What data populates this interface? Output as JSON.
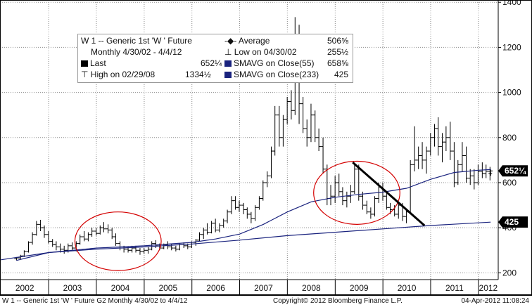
{
  "legend": {
    "title": "W 1 -- Generic 1st 'W ' Future",
    "average_label": "Average",
    "average_value": "506⅝",
    "range": "Monthly 4/30/02 - 4/4/12",
    "low_label": "Low on 04/30/02",
    "low_value": "255½",
    "last_label": "Last",
    "last_value": "652¼",
    "sma55_label": "SMAVG on Close(55)",
    "sma55_value": "658⅝",
    "high_label": "High on 02/29/08",
    "high_value": "1334½",
    "sma233_label": "SMAVG on Close(233)",
    "sma233_value": "425"
  },
  "badges": {
    "last": "652¼",
    "sma233": "425"
  },
  "footer": {
    "left": "W 1 -- Generic 1st 'W ' Future   G2  Monthly  4/30/02 to 4/4/12",
    "middle": "Copyright© 2012 Bloomberg Finance L.P.",
    "right": "04-Apr-2012 11:08:24"
  },
  "colors": {
    "price": "#000000",
    "sma55": "#1a237e",
    "sma233": "#1a237e",
    "circle": "#d40000",
    "trendline": "#000000"
  },
  "chart_data": {
    "type": "bar",
    "ylim": [
      170,
      1410
    ],
    "yticks": [
      200,
      400,
      600,
      800,
      1000,
      1200,
      1400
    ],
    "xlim": [
      "2001-12-25",
      "2012-06-01"
    ],
    "x_labels": [
      "2002",
      "2003",
      "2004",
      "2005",
      "2006",
      "2007",
      "2008",
      "2009",
      "2010",
      "2011",
      "2012"
    ],
    "grid": true,
    "price_axis": "right",
    "series": [
      {
        "name": "W 1 -- Generic 1st 'W ' Future",
        "style": "ohlc_monthly",
        "ohlc": [
          [
            "2002-04-30",
            262,
            270,
            255,
            266
          ],
          [
            "2002-05-31",
            266,
            280,
            258,
            275
          ],
          [
            "2002-06-28",
            275,
            300,
            270,
            295
          ],
          [
            "2002-07-31",
            295,
            340,
            290,
            335
          ],
          [
            "2002-08-30",
            335,
            380,
            325,
            370
          ],
          [
            "2002-09-30",
            370,
            430,
            365,
            415
          ],
          [
            "2002-10-31",
            415,
            435,
            385,
            400
          ],
          [
            "2002-11-29",
            400,
            410,
            355,
            370
          ],
          [
            "2002-12-31",
            370,
            385,
            330,
            340
          ],
          [
            "2003-01-31",
            340,
            350,
            315,
            325
          ],
          [
            "2003-02-28",
            325,
            340,
            300,
            315
          ],
          [
            "2003-03-31",
            315,
            330,
            290,
            305
          ],
          [
            "2003-04-30",
            305,
            320,
            285,
            300
          ],
          [
            "2003-05-30",
            300,
            330,
            290,
            320
          ],
          [
            "2003-06-30",
            320,
            335,
            300,
            310
          ],
          [
            "2003-07-31",
            310,
            340,
            295,
            330
          ],
          [
            "2003-08-29",
            330,
            370,
            325,
            360
          ],
          [
            "2003-09-30",
            360,
            385,
            340,
            350
          ],
          [
            "2003-10-31",
            350,
            380,
            340,
            370
          ],
          [
            "2003-11-28",
            370,
            400,
            360,
            385
          ],
          [
            "2003-12-31",
            385,
            400,
            365,
            375
          ],
          [
            "2004-01-30",
            375,
            410,
            370,
            400
          ],
          [
            "2004-02-27",
            400,
            425,
            380,
            395
          ],
          [
            "2004-03-31",
            395,
            415,
            375,
            390
          ],
          [
            "2004-04-30",
            390,
            400,
            350,
            360
          ],
          [
            "2004-05-28",
            360,
            375,
            320,
            330
          ],
          [
            "2004-06-30",
            330,
            340,
            300,
            310
          ],
          [
            "2004-07-30",
            310,
            320,
            290,
            305
          ],
          [
            "2004-08-31",
            305,
            315,
            290,
            300
          ],
          [
            "2004-09-30",
            300,
            320,
            290,
            310
          ],
          [
            "2004-10-29",
            310,
            320,
            290,
            300
          ],
          [
            "2004-11-30",
            300,
            310,
            280,
            295
          ],
          [
            "2004-12-31",
            295,
            310,
            285,
            300
          ],
          [
            "2005-01-31",
            300,
            315,
            285,
            305
          ],
          [
            "2005-02-28",
            305,
            340,
            300,
            330
          ],
          [
            "2005-03-31",
            330,
            345,
            310,
            320
          ],
          [
            "2005-04-29",
            320,
            330,
            300,
            310
          ],
          [
            "2005-05-31",
            310,
            330,
            305,
            325
          ],
          [
            "2005-06-30",
            325,
            340,
            305,
            315
          ],
          [
            "2005-07-29",
            315,
            330,
            300,
            310
          ],
          [
            "2005-08-31",
            310,
            320,
            295,
            305
          ],
          [
            "2005-09-30",
            305,
            330,
            300,
            325
          ],
          [
            "2005-10-31",
            325,
            335,
            310,
            320
          ],
          [
            "2005-11-30",
            320,
            330,
            305,
            315
          ],
          [
            "2005-12-30",
            315,
            340,
            310,
            335
          ],
          [
            "2006-01-31",
            335,
            350,
            320,
            345
          ],
          [
            "2006-02-28",
            345,
            380,
            340,
            370
          ],
          [
            "2006-03-31",
            370,
            400,
            350,
            390
          ],
          [
            "2006-04-28",
            390,
            420,
            370,
            380
          ],
          [
            "2006-05-31",
            380,
            430,
            375,
            420
          ],
          [
            "2006-06-30",
            420,
            440,
            380,
            390
          ],
          [
            "2006-07-31",
            390,
            420,
            380,
            410
          ],
          [
            "2006-08-31",
            410,
            440,
            400,
            430
          ],
          [
            "2006-09-29",
            430,
            480,
            420,
            470
          ],
          [
            "2006-10-31",
            470,
            540,
            460,
            520
          ],
          [
            "2006-11-30",
            520,
            540,
            480,
            490
          ],
          [
            "2006-12-29",
            490,
            520,
            470,
            500
          ],
          [
            "2007-01-31",
            500,
            510,
            460,
            480
          ],
          [
            "2007-02-28",
            480,
            490,
            440,
            460
          ],
          [
            "2007-03-30",
            460,
            470,
            420,
            440
          ],
          [
            "2007-04-30",
            440,
            500,
            430,
            490
          ],
          [
            "2007-05-31",
            490,
            540,
            480,
            530
          ],
          [
            "2007-06-29",
            530,
            610,
            520,
            600
          ],
          [
            "2007-07-31",
            600,
            650,
            580,
            630
          ],
          [
            "2007-08-31",
            630,
            760,
            620,
            740
          ],
          [
            "2007-09-28",
            740,
            940,
            720,
            900
          ],
          [
            "2007-10-31",
            900,
            940,
            760,
            800
          ],
          [
            "2007-11-30",
            800,
            900,
            760,
            880
          ],
          [
            "2007-12-31",
            880,
            980,
            860,
            960
          ],
          [
            "2008-01-31",
            960,
            1010,
            880,
            920
          ],
          [
            "2008-02-29",
            920,
            1334,
            900,
            1100
          ],
          [
            "2008-03-31",
            1100,
            1300,
            860,
            950
          ],
          [
            "2008-04-30",
            950,
            980,
            820,
            840
          ],
          [
            "2008-05-30",
            840,
            880,
            760,
            800
          ],
          [
            "2008-06-30",
            800,
            950,
            780,
            900
          ],
          [
            "2008-07-31",
            900,
            920,
            780,
            800
          ],
          [
            "2008-08-29",
            800,
            840,
            740,
            760
          ],
          [
            "2008-09-30",
            760,
            800,
            640,
            660
          ],
          [
            "2008-10-31",
            660,
            680,
            500,
            530
          ],
          [
            "2008-11-28",
            530,
            590,
            500,
            540
          ],
          [
            "2008-12-31",
            540,
            630,
            510,
            600
          ],
          [
            "2009-01-30",
            600,
            640,
            540,
            560
          ],
          [
            "2009-02-27",
            560,
            580,
            500,
            520
          ],
          [
            "2009-03-31",
            520,
            560,
            490,
            540
          ],
          [
            "2009-04-30",
            540,
            590,
            510,
            560
          ],
          [
            "2009-05-29",
            560,
            680,
            550,
            660
          ],
          [
            "2009-06-30",
            660,
            680,
            520,
            540
          ],
          [
            "2009-07-31",
            540,
            560,
            480,
            500
          ],
          [
            "2009-08-31",
            500,
            520,
            460,
            470
          ],
          [
            "2009-09-30",
            470,
            490,
            440,
            460
          ],
          [
            "2009-10-30",
            460,
            540,
            450,
            530
          ],
          [
            "2009-11-30",
            530,
            600,
            510,
            580
          ],
          [
            "2009-12-31",
            580,
            600,
            520,
            540
          ],
          [
            "2010-01-29",
            540,
            560,
            480,
            490
          ],
          [
            "2010-02-26",
            490,
            510,
            460,
            480
          ],
          [
            "2010-03-31",
            480,
            500,
            450,
            460
          ],
          [
            "2010-04-30",
            460,
            510,
            440,
            500
          ],
          [
            "2010-05-31",
            500,
            510,
            430,
            450
          ],
          [
            "2010-06-30",
            450,
            480,
            420,
            470
          ],
          [
            "2010-07-30",
            470,
            700,
            460,
            680
          ],
          [
            "2010-08-31",
            680,
            850,
            650,
            700
          ],
          [
            "2010-09-30",
            700,
            760,
            660,
            720
          ],
          [
            "2010-10-29",
            720,
            780,
            660,
            700
          ],
          [
            "2010-11-30",
            700,
            760,
            640,
            740
          ],
          [
            "2010-12-31",
            740,
            820,
            720,
            800
          ],
          [
            "2011-01-31",
            800,
            860,
            760,
            840
          ],
          [
            "2011-02-28",
            840,
            890,
            720,
            760
          ],
          [
            "2011-03-31",
            760,
            820,
            690,
            780
          ],
          [
            "2011-04-29",
            780,
            850,
            740,
            800
          ],
          [
            "2011-05-31",
            800,
            870,
            700,
            740
          ],
          [
            "2011-06-30",
            740,
            780,
            580,
            600
          ],
          [
            "2011-07-29",
            600,
            700,
            590,
            680
          ],
          [
            "2011-08-31",
            680,
            780,
            650,
            720
          ],
          [
            "2011-09-30",
            720,
            760,
            600,
            620
          ],
          [
            "2011-10-31",
            620,
            660,
            590,
            630
          ],
          [
            "2011-11-30",
            630,
            660,
            570,
            600
          ],
          [
            "2011-12-30",
            600,
            680,
            590,
            650
          ],
          [
            "2012-01-31",
            650,
            690,
            620,
            640
          ],
          [
            "2012-02-29",
            640,
            680,
            620,
            650
          ],
          [
            "2012-03-30",
            650,
            670,
            610,
            640
          ],
          [
            "2012-04-04",
            640,
            660,
            630,
            652
          ]
        ]
      },
      {
        "name": "SMAVG on Close(55)",
        "style": "line",
        "points": [
          [
            "2002-04-30",
            255
          ],
          [
            "2003-01-01",
            290
          ],
          [
            "2004-01-01",
            310
          ],
          [
            "2005-01-01",
            320
          ],
          [
            "2006-01-01",
            335
          ],
          [
            "2006-07-01",
            350
          ],
          [
            "2007-01-01",
            372
          ],
          [
            "2007-07-01",
            415
          ],
          [
            "2008-01-01",
            470
          ],
          [
            "2008-07-01",
            515
          ],
          [
            "2009-01-01",
            535
          ],
          [
            "2009-07-01",
            548
          ],
          [
            "2010-01-01",
            558
          ],
          [
            "2010-07-01",
            575
          ],
          [
            "2011-01-01",
            615
          ],
          [
            "2011-07-01",
            645
          ],
          [
            "2012-01-01",
            655
          ],
          [
            "2012-04-04",
            658
          ]
        ]
      },
      {
        "name": "SMAVG on Close(233)",
        "style": "line",
        "points": [
          [
            "2002-01-01",
            258
          ],
          [
            "2003-01-01",
            290
          ],
          [
            "2004-01-01",
            305
          ],
          [
            "2005-01-01",
            315
          ],
          [
            "2006-01-01",
            328
          ],
          [
            "2007-01-01",
            345
          ],
          [
            "2008-01-01",
            365
          ],
          [
            "2009-01-01",
            380
          ],
          [
            "2010-01-01",
            395
          ],
          [
            "2011-01-01",
            410
          ],
          [
            "2012-04-04",
            425
          ]
        ]
      }
    ],
    "annotations": {
      "circles": [
        {
          "center": [
            "2004-06-15",
            340
          ],
          "radius_x_days": 330,
          "radius_y": 130
        },
        {
          "center": [
            "2009-06-15",
            555
          ],
          "radius_x_days": 330,
          "radius_y": 140
        }
      ],
      "trendline": {
        "from": [
          "2009-05-15",
          690
        ],
        "to": [
          "2010-11-15",
          410
        ]
      }
    }
  }
}
